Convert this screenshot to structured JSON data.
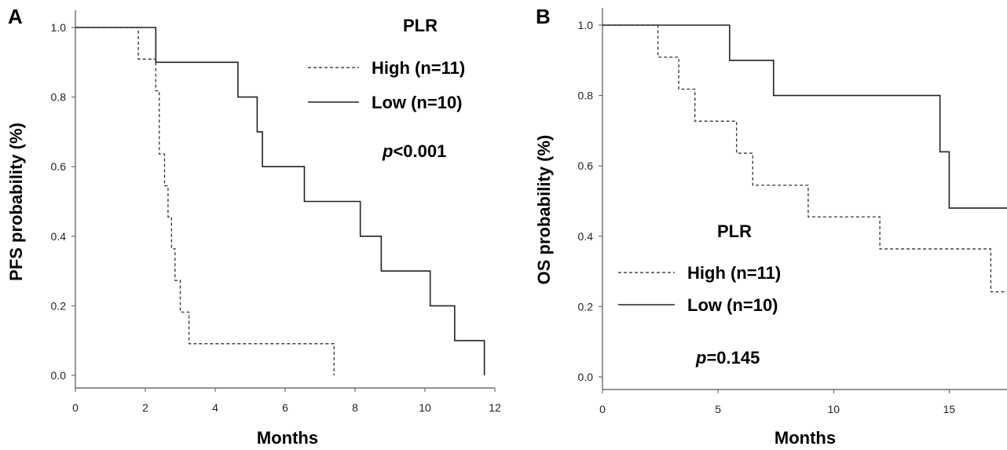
{
  "chart_data": [
    {
      "type": "line",
      "step": true,
      "panel_label": "A",
      "xlabel": "Months",
      "ylabel": "PFS probability (%)",
      "xlim": [
        0,
        12
      ],
      "ylim": [
        0,
        1.0
      ],
      "xticks": [
        0,
        2,
        4,
        6,
        8,
        10,
        12
      ],
      "yticks": [
        "0.0",
        "0.2",
        "0.4",
        "0.6",
        "0.8",
        "1.0"
      ],
      "legend_title": "PLR",
      "legend_position": "top-right",
      "pvalue": {
        "p": "p",
        "rest": "<0.001"
      },
      "series": [
        {
          "name": "High (n=11)",
          "style": "dashed",
          "x": [
            0,
            1.8,
            2.3,
            2.4,
            2.55,
            2.65,
            2.75,
            2.85,
            3.0,
            3.25,
            3.75,
            7.4
          ],
          "y": [
            1.0,
            0.909,
            0.818,
            0.636,
            0.545,
            0.455,
            0.364,
            0.273,
            0.182,
            0.091,
            0.091,
            0.0
          ]
        },
        {
          "name": "Low (n=10)",
          "style": "solid",
          "x": [
            0,
            2.3,
            4.65,
            5.2,
            5.35,
            6.55,
            8.15,
            8.75,
            10.15,
            10.85,
            11.7
          ],
          "y": [
            1.0,
            0.9,
            0.8,
            0.7,
            0.6,
            0.5,
            0.4,
            0.3,
            0.2,
            0.1,
            0.0
          ]
        }
      ]
    },
    {
      "type": "line",
      "step": true,
      "panel_label": "B",
      "xlabel": "Months",
      "ylabel": "OS probability (%)",
      "xlim": [
        0,
        17.5
      ],
      "ylim": [
        0,
        1.0
      ],
      "xticks": [
        0,
        5,
        10,
        15
      ],
      "yticks": [
        "0.0",
        "0.2",
        "0.4",
        "0.6",
        "0.8",
        "1.0"
      ],
      "legend_title": "PLR",
      "legend_position": "bottom-left",
      "pvalue": {
        "p": "p",
        "rest": "=0.145"
      },
      "series": [
        {
          "name": "High (n=11)",
          "style": "dashed",
          "x": [
            0,
            2.4,
            3.3,
            4.0,
            5.8,
            6.5,
            8.9,
            12.0,
            16.8
          ],
          "y": [
            1.0,
            0.909,
            0.818,
            0.727,
            0.636,
            0.545,
            0.455,
            0.364,
            0.242
          ]
        },
        {
          "name": "Low (n=10)",
          "style": "solid",
          "x": [
            0,
            5.5,
            7.4,
            14.6,
            15.0
          ],
          "y": [
            1.0,
            0.9,
            0.8,
            0.64,
            0.48
          ]
        }
      ]
    }
  ]
}
